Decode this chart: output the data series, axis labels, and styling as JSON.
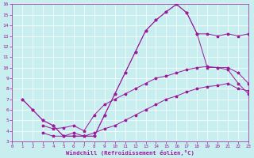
{
  "xlabel": "Windchill (Refroidissement éolien,°C)",
  "bg_color": "#c8eef0",
  "line_color": "#9b1b9b",
  "xlim": [
    0,
    23
  ],
  "ylim": [
    3,
    16
  ],
  "xticks": [
    0,
    1,
    2,
    3,
    4,
    5,
    6,
    7,
    8,
    9,
    10,
    11,
    12,
    13,
    14,
    15,
    16,
    17,
    18,
    19,
    20,
    21,
    22,
    23
  ],
  "yticks": [
    3,
    4,
    5,
    6,
    7,
    8,
    9,
    10,
    11,
    12,
    13,
    14,
    15,
    16
  ],
  "line1_x": [
    1,
    2,
    3,
    4,
    5,
    6,
    7,
    8,
    9,
    10,
    11,
    12,
    13,
    14,
    15,
    16,
    17,
    18,
    19,
    20,
    21,
    22,
    23
  ],
  "line1_y": [
    7.0,
    6.0,
    5.0,
    4.5,
    3.5,
    3.5,
    3.5,
    3.5,
    5.5,
    7.5,
    9.5,
    11.5,
    13.5,
    14.5,
    15.3,
    16.0,
    15.2,
    13.2,
    13.2,
    13.0,
    13.2,
    13.0,
    13.2
  ],
  "line2_x": [
    1,
    2,
    3,
    4,
    5,
    6,
    7,
    8,
    9,
    10,
    11,
    12,
    13,
    14,
    15,
    16,
    17,
    18,
    19,
    20,
    21,
    22,
    23
  ],
  "line2_y": [
    7.0,
    6.0,
    5.0,
    4.5,
    3.5,
    3.5,
    3.5,
    3.5,
    5.5,
    7.5,
    9.5,
    11.5,
    13.5,
    14.5,
    15.3,
    16.0,
    15.2,
    13.2,
    10.0,
    10.0,
    10.0,
    9.5,
    8.5
  ],
  "line3_x": [
    3,
    4,
    5,
    6,
    7,
    8,
    9,
    10,
    11,
    12,
    13,
    14,
    15,
    16,
    17,
    18,
    19,
    20,
    21,
    22,
    23
  ],
  "line3_y": [
    4.5,
    4.2,
    4.3,
    4.5,
    4.0,
    5.5,
    6.5,
    7.0,
    7.5,
    8.0,
    8.5,
    9.0,
    9.2,
    9.5,
    9.8,
    10.0,
    10.1,
    10.0,
    9.8,
    8.5,
    7.5
  ],
  "line4_x": [
    3,
    4,
    5,
    6,
    7,
    8,
    9,
    10,
    11,
    12,
    13,
    14,
    15,
    16,
    17,
    18,
    19,
    20,
    21,
    22,
    23
  ],
  "line4_y": [
    3.8,
    3.5,
    3.5,
    3.8,
    3.5,
    3.8,
    4.2,
    4.5,
    5.0,
    5.5,
    6.0,
    6.5,
    7.0,
    7.3,
    7.7,
    8.0,
    8.2,
    8.3,
    8.5,
    8.0,
    7.8
  ]
}
